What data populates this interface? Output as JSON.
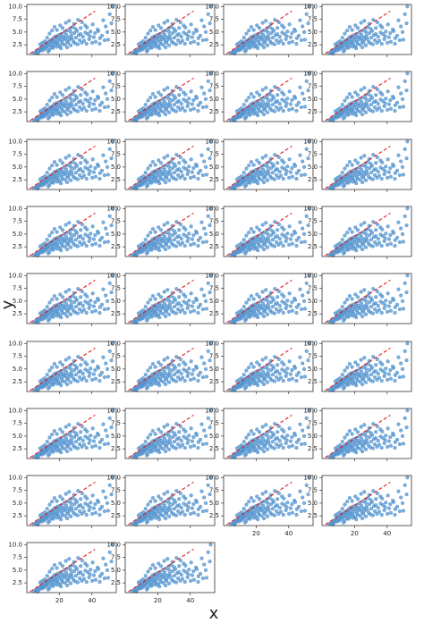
{
  "figure": {
    "xlabel": "x",
    "ylabel": "y"
  },
  "style": {
    "point_color": "#5b9bd5",
    "point_edge": "#3a7fc0",
    "line_color": "#e31a1c",
    "axis_color": "#333333",
    "text_color": "#222222"
  },
  "chart_data": {
    "type": "scatter",
    "subplot_count": 34,
    "columns": 4,
    "x_tick_labels_shown_on": "bottom-row panels only",
    "xlim": [
      0,
      55
    ],
    "ylim": [
      0.6,
      10.4
    ],
    "x_ticks": [
      20,
      40
    ],
    "y_ticks": [
      2.5,
      5.0,
      7.5,
      10.0
    ],
    "y_tick_labels": [
      "2.5",
      "5.0",
      "7.5",
      "10.0"
    ],
    "x_tick_labels": [
      "20",
      "40"
    ],
    "reference_line": {
      "style": "dashed",
      "color": "red",
      "x": [
        2,
        42
      ],
      "y": [
        0.8,
        9.1
      ]
    },
    "points": [
      [
        52.5,
        10.0
      ],
      [
        4.5,
        0.9
      ],
      [
        5.6,
        1.1
      ],
      [
        6.2,
        1.0
      ],
      [
        7.0,
        1.4
      ],
      [
        7.5,
        1.2
      ],
      [
        8.0,
        1.7
      ],
      [
        8.6,
        1.5
      ],
      [
        9.0,
        2.0
      ],
      [
        9.4,
        1.4
      ],
      [
        10.0,
        1.8
      ],
      [
        10.5,
        2.3
      ],
      [
        10.8,
        1.6
      ],
      [
        11.2,
        2.1
      ],
      [
        11.6,
        2.6
      ],
      [
        12.0,
        1.9
      ],
      [
        12.4,
        2.4
      ],
      [
        12.8,
        3.0
      ],
      [
        13.1,
        2.2
      ],
      [
        13.5,
        2.8
      ],
      [
        13.9,
        1.5
      ],
      [
        14.2,
        3.3
      ],
      [
        14.6,
        2.5
      ],
      [
        15.0,
        3.1
      ],
      [
        15.3,
        2.0
      ],
      [
        15.7,
        3.6
      ],
      [
        16.0,
        2.7
      ],
      [
        16.4,
        3.2
      ],
      [
        16.8,
        4.0
      ],
      [
        17.1,
        2.3
      ],
      [
        17.5,
        3.5
      ],
      [
        17.9,
        2.9
      ],
      [
        18.2,
        4.2
      ],
      [
        18.6,
        3.0
      ],
      [
        19.0,
        3.8
      ],
      [
        19.3,
        2.6
      ],
      [
        19.7,
        4.4
      ],
      [
        20.1,
        3.4
      ],
      [
        20.4,
        2.2
      ],
      [
        20.8,
        3.9
      ],
      [
        21.2,
        4.6
      ],
      [
        21.5,
        3.1
      ],
      [
        21.9,
        2.7
      ],
      [
        22.3,
        4.1
      ],
      [
        22.7,
        3.6
      ],
      [
        23.0,
        5.0
      ],
      [
        23.4,
        2.5
      ],
      [
        23.8,
        3.8
      ],
      [
        24.2,
        4.5
      ],
      [
        24.6,
        3.2
      ],
      [
        25.0,
        5.3
      ],
      [
        25.4,
        2.9
      ],
      [
        25.8,
        4.0
      ],
      [
        26.2,
        3.5
      ],
      [
        26.6,
        5.7
      ],
      [
        27.0,
        2.4
      ],
      [
        27.4,
        4.3
      ],
      [
        27.8,
        3.7
      ],
      [
        28.3,
        6.0
      ],
      [
        28.7,
        3.1
      ],
      [
        29.2,
        4.8
      ],
      [
        29.7,
        2.8
      ],
      [
        30.2,
        3.9
      ],
      [
        30.8,
        5.2
      ],
      [
        31.3,
        2.6
      ],
      [
        31.9,
        4.4
      ],
      [
        32.5,
        3.4
      ],
      [
        33.1,
        5.8
      ],
      [
        33.8,
        2.9
      ],
      [
        34.5,
        4.1
      ],
      [
        35.2,
        3.3
      ],
      [
        35.9,
        6.3
      ],
      [
        36.7,
        2.7
      ],
      [
        37.5,
        4.6
      ],
      [
        38.3,
        3.6
      ],
      [
        39.2,
        5.1
      ],
      [
        40.2,
        2.9
      ],
      [
        41.2,
        4.0
      ],
      [
        42.3,
        3.1
      ],
      [
        43.5,
        5.5
      ],
      [
        44.8,
        2.7
      ],
      [
        46.2,
        4.3
      ],
      [
        47.8,
        3.4
      ],
      [
        49.5,
        5.0
      ],
      [
        51.0,
        8.5
      ],
      [
        12.5,
        3.9
      ],
      [
        14.0,
        4.7
      ],
      [
        15.5,
        5.3
      ],
      [
        17.0,
        6.0
      ],
      [
        11.0,
        3.2
      ],
      [
        8.2,
        2.6
      ],
      [
        9.6,
        2.9
      ],
      [
        18.5,
        5.4
      ],
      [
        20.5,
        6.3
      ],
      [
        22.0,
        5.8
      ],
      [
        24.0,
        6.8
      ],
      [
        26.0,
        7.2
      ],
      [
        29.0,
        6.6
      ],
      [
        31.5,
        7.4
      ],
      [
        34.0,
        6.9
      ],
      [
        16.2,
        1.9
      ],
      [
        18.8,
        2.1
      ],
      [
        21.0,
        1.8
      ],
      [
        24.8,
        2.0
      ],
      [
        13.2,
        1.2
      ],
      [
        6.8,
        0.8
      ],
      [
        36.0,
        4.9
      ],
      [
        38.8,
        4.2
      ],
      [
        42.0,
        4.8
      ],
      [
        45.0,
        3.8
      ],
      [
        48.5,
        6.1
      ],
      [
        52.0,
        6.7
      ],
      [
        50.0,
        3.5
      ],
      [
        27.0,
        5.0
      ],
      [
        30.0,
        5.6
      ],
      [
        33.0,
        4.6
      ],
      [
        37.0,
        5.9
      ],
      [
        40.5,
        6.5
      ],
      [
        44.0,
        5.2
      ],
      [
        47.0,
        7.3
      ]
    ]
  }
}
